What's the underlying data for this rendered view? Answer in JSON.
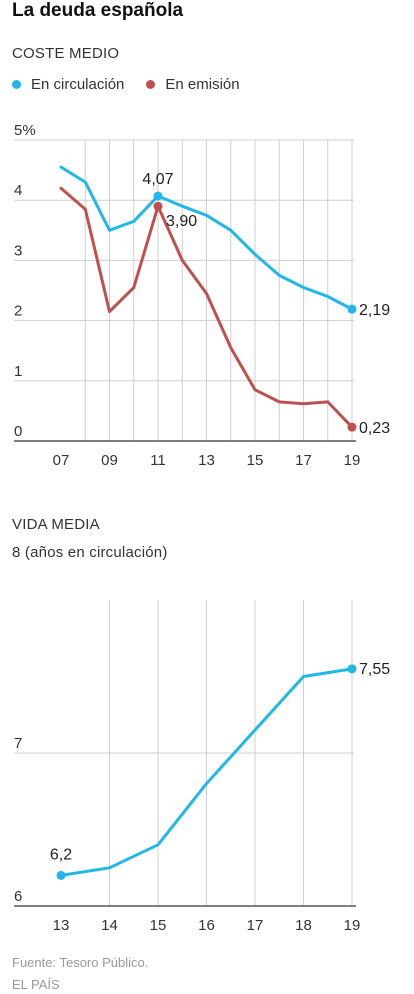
{
  "title": "La deuda española",
  "source": "Fuente: Tesoro Público.",
  "brand": "EL PAÍS",
  "colors": {
    "circulation": "#1fb8e8",
    "emission": "#c0504d",
    "grid": "#cfcfcf",
    "axis": "#333333"
  },
  "chart_data": [
    {
      "type": "line",
      "section_label": "COSTE MEDIO",
      "xlabel": "",
      "ylabel": "",
      "x": [
        2007,
        2008,
        2009,
        2010,
        2011,
        2012,
        2013,
        2014,
        2015,
        2016,
        2017,
        2018,
        2019
      ],
      "x_tick_labels": [
        "07",
        "09",
        "11",
        "13",
        "15",
        "17",
        "19"
      ],
      "x_tick_values": [
        2007,
        2009,
        2011,
        2013,
        2015,
        2017,
        2019
      ],
      "y_tick_labels": [
        "5%",
        "4",
        "3",
        "2",
        "1",
        "0"
      ],
      "y_tick_values": [
        5,
        4,
        3,
        2,
        1,
        0
      ],
      "ylim": [
        0,
        5
      ],
      "grid": true,
      "legend_position": "top-left",
      "series": [
        {
          "name": "En circulación",
          "color": "#1fb8e8",
          "values": [
            4.55,
            4.3,
            3.5,
            3.65,
            4.07,
            3.9,
            3.75,
            3.5,
            3.1,
            2.75,
            2.55,
            2.4,
            2.19
          ],
          "labeled_points": [
            {
              "x": 2011,
              "label": "4,07"
            },
            {
              "x": 2019,
              "label": "2,19"
            }
          ]
        },
        {
          "name": "En emisión",
          "color": "#c0504d",
          "values": [
            4.2,
            3.85,
            2.15,
            2.55,
            3.9,
            3.0,
            2.45,
            1.55,
            0.85,
            0.65,
            0.62,
            0.65,
            0.23
          ],
          "labeled_points": [
            {
              "x": 2011,
              "label": "3,90"
            },
            {
              "x": 2019,
              "label": "0,23"
            }
          ]
        }
      ]
    },
    {
      "type": "line",
      "section_label": "VIDA MEDIA",
      "subtitle": "8 (años en circulación)",
      "xlabel": "",
      "ylabel": "",
      "x": [
        2013,
        2014,
        2015,
        2016,
        2017,
        2018,
        2019
      ],
      "x_tick_labels": [
        "13",
        "14",
        "15",
        "16",
        "17",
        "18",
        "19"
      ],
      "x_tick_values": [
        2013,
        2014,
        2015,
        2016,
        2017,
        2018,
        2019
      ],
      "y_tick_labels": [
        "7",
        "6"
      ],
      "y_tick_values": [
        7,
        6
      ],
      "ylim": [
        6,
        8
      ],
      "grid": true,
      "series": [
        {
          "color": "#1fb8e8",
          "values": [
            6.2,
            6.25,
            6.4,
            6.8,
            7.15,
            7.5,
            7.55
          ],
          "labeled_points": [
            {
              "x": 2013,
              "label": "6,2"
            },
            {
              "x": 2019,
              "label": "7,55"
            }
          ]
        }
      ]
    }
  ]
}
